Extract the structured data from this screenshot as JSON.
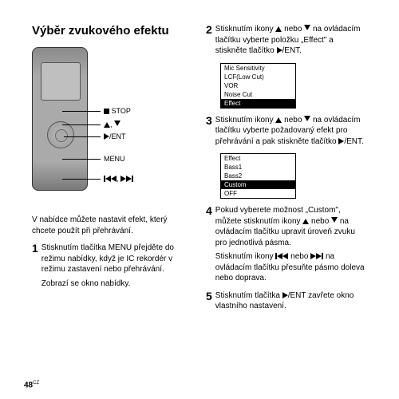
{
  "title": "Výběr zvukového efektu",
  "labels": {
    "stop": "STOP",
    "arrows": ", ",
    "ent": "/ENT",
    "menu": "MENU",
    "skip": ", "
  },
  "caption": "V nabídce můžete nastavit efekt, který chcete použít při přehrávání.",
  "step1": {
    "text": "Stisknutím tlačítka MENU přejděte do režimu nabídky, když je IC rekordér v režimu zastavení nebo přehrávání.",
    "text2": "Zobrazí se okno nabídky."
  },
  "step2": {
    "prefix": "Stisknutím ikony ",
    "mid": " nebo ",
    "suffix": " na ovládacím tlačítku vyberte položku „Effect\" a stiskněte tlačítko ",
    "end": "/ENT."
  },
  "menu1": {
    "items": [
      "Mic Sensitivity",
      "LCF(Low Cut)",
      "VOR",
      "Noise Cut",
      "Effect"
    ],
    "selected": 4
  },
  "step3": {
    "prefix": "Stisknutím ikony ",
    "mid": " nebo ",
    "suffix": " na ovládacím tlačítku vyberte požadovaný efekt pro přehrávání a pak stiskněte tlačítko ",
    "end": "/ENT."
  },
  "menu2": {
    "items": [
      "Effect",
      "Bass1",
      "Bass2",
      "Custom",
      "OFF"
    ],
    "selected": 3
  },
  "step4": {
    "l1a": "Pokud vyberete možnost „Custom\", můžete stisknutím ikony ",
    "l1b": " nebo ",
    "l1c": " na ovládacím tlačítku upravit úroveň zvuku pro jednotlivá pásma.",
    "l2a": "Stisknutím ikony ",
    "l2b": " nebo ",
    "l2c": " na ovládacím tlačítku přesuňte pásmo doleva nebo doprava."
  },
  "step5": {
    "a": "Stisknutím tlačítka ",
    "b": "/ENT zavřete okno vlastního nastavení."
  },
  "pageNum": "48",
  "pageSup": "CZ"
}
